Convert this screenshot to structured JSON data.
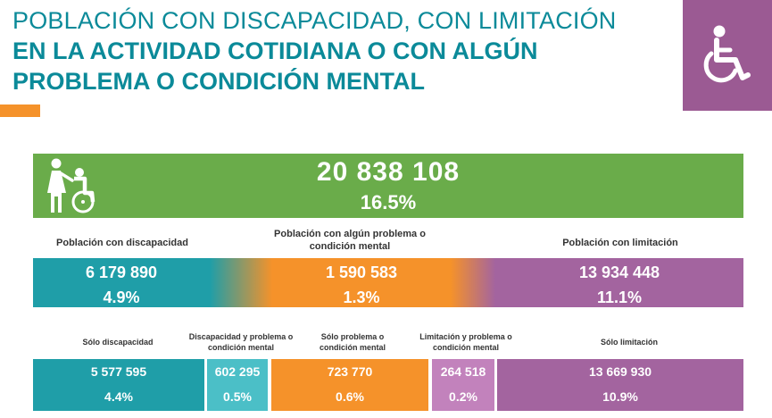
{
  "title": {
    "line1": "POBLACIÓN CON DISCAPACIDAD, CON LIMITACIÓN",
    "line2": "EN LA  ACTIVIDAD COTIDIANA O CON ALGÚN",
    "line3": "PROBLEMA O CONDICIÓN MENTAL"
  },
  "icons": {
    "corner": "wheelchair-icon",
    "total": "caregiver-wheelchair-icon"
  },
  "colors": {
    "teal": "#1f9ea8",
    "green": "#6aac4a",
    "orange": "#f5922a",
    "purple": "#a3649f",
    "title": "#0b8a99"
  },
  "total": {
    "value": "20 838 108",
    "percent": "16.5%"
  },
  "groups": [
    {
      "label": "Población con discapacidad",
      "value": "6 179 890",
      "percent": "4.9%"
    },
    {
      "label": "Población con algún problema o condición mental",
      "value": "1 590 583",
      "percent": "1.3%"
    },
    {
      "label": "Población con limitación",
      "value": "13 934 448",
      "percent": "11.1%"
    }
  ],
  "breakdown": [
    {
      "label": "Sólo discapacidad",
      "value": "5 577 595",
      "percent": "4.4%"
    },
    {
      "label": "Discapacidad y problema o condición mental",
      "value": "602 295",
      "percent": "0.5%"
    },
    {
      "label": "Sólo problema o condición mental",
      "value": "723 770",
      "percent": "0.6%"
    },
    {
      "label": "Limitación y problema o condición mental",
      "value": "264 518",
      "percent": "0.2%"
    },
    {
      "label": "Sólo limitación",
      "value": "13 669 930",
      "percent": "10.9%"
    }
  ]
}
